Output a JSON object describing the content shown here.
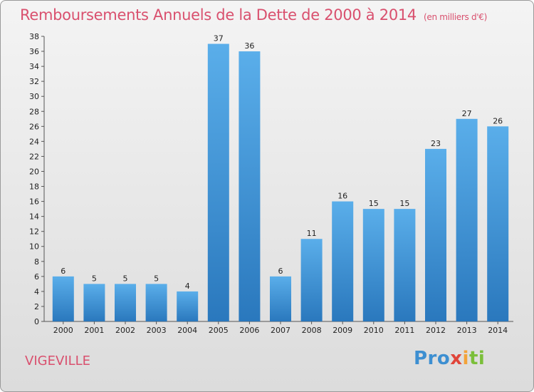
{
  "header": {
    "title": "Remboursements Annuels de la Dette de 2000 à 2014",
    "unit": "(en milliers d'€)"
  },
  "footer": {
    "commune": "VIGEVILLE",
    "logo": [
      "Pro",
      "x",
      "i",
      "ti"
    ]
  },
  "colors": {
    "title": "#d9506e",
    "bar_light": "#5aaeea",
    "bar_dark": "#2a78bd"
  },
  "chart_data": {
    "type": "bar",
    "title": "Remboursements Annuels de la Dette de 2000 à 2014",
    "categories": [
      "2000",
      "2001",
      "2002",
      "2003",
      "2004",
      "2005",
      "2006",
      "2007",
      "2008",
      "2009",
      "2010",
      "2011",
      "2012",
      "2013",
      "2014"
    ],
    "values": [
      6,
      5,
      5,
      5,
      4,
      37,
      36,
      6,
      11,
      16,
      15,
      15,
      23,
      27,
      26
    ],
    "ylim": [
      0,
      38
    ],
    "yticks": [
      0,
      2,
      4,
      6,
      8,
      10,
      12,
      14,
      16,
      18,
      20,
      22,
      24,
      26,
      28,
      30,
      32,
      34,
      36,
      38
    ],
    "grid": false,
    "legend": "none"
  }
}
